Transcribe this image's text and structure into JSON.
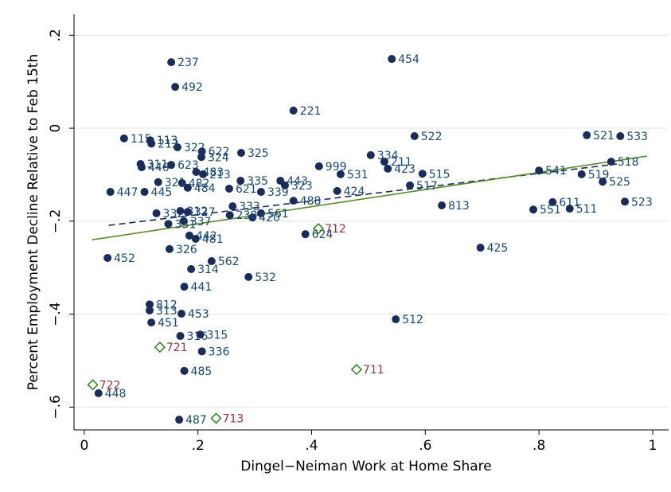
{
  "chart_data": {
    "type": "scatter",
    "x_label": "Dingel−Neiman Work at Home Share",
    "y_label": "Percent Employment Decline Relative to Feb 15th",
    "xlim": [
      -0.018,
      1.028
    ],
    "ylim": [
      -0.649,
      0.245
    ],
    "xticks": [
      0,
      {
        "value": 0.2,
        "label": ".2"
      },
      {
        "value": 0.4,
        "label": ".4"
      },
      {
        "value": 0.6,
        "label": ".6"
      },
      {
        "value": 0.8,
        "label": ".8"
      },
      1
    ],
    "yticks": [
      {
        "value": 0.2,
        "label": ".2"
      },
      0,
      {
        "value": -0.2,
        "label": "−.2"
      },
      {
        "value": -0.4,
        "label": "−.4"
      },
      {
        "value": -0.6,
        "label": "−.6"
      }
    ],
    "grid": true,
    "series": [
      {
        "marker": "circle",
        "color": "#1a2d5a",
        "label_color": "#1a476f",
        "labels": [
          "237",
          "492",
          "454",
          "221",
          "522",
          "521",
          "533",
          "518",
          "541",
          "519",
          "525",
          "523",
          "611",
          "551",
          "511",
          "813",
          "425",
          "512",
          "334",
          "211",
          "423",
          "515",
          "517",
          "531",
          "999",
          "424",
          "443",
          "323",
          "488",
          "339",
          "335",
          "325",
          "621",
          "333",
          "561",
          "420",
          "238",
          "624",
          "448",
          "487",
          "485",
          "336",
          "316",
          "315",
          "453",
          "451",
          "313",
          "812",
          "441",
          "532",
          "314",
          "562",
          "326",
          "452",
          "442",
          "481",
          "337",
          "331",
          "332",
          "312",
          "327",
          "484",
          "482",
          "321",
          "447",
          "445",
          "446",
          "311",
          "623",
          "483",
          "213",
          "622",
          "324",
          "322",
          "115",
          "113",
          "212"
        ],
        "x": [
          0.153,
          0.16,
          0.541,
          0.368,
          0.581,
          0.884,
          0.943,
          0.927,
          0.8,
          0.875,
          0.912,
          0.951,
          0.824,
          0.79,
          0.854,
          0.629,
          0.697,
          0.548,
          0.504,
          0.528,
          0.534,
          0.595,
          0.573,
          0.451,
          0.413,
          0.445,
          0.345,
          0.353,
          0.368,
          0.311,
          0.275,
          0.276,
          0.255,
          0.261,
          0.311,
          0.296,
          0.256,
          0.389,
          0.025,
          0.167,
          0.176,
          0.207,
          0.169,
          0.204,
          0.171,
          0.118,
          0.115,
          0.115,
          0.176,
          0.289,
          0.188,
          0.224,
          0.15,
          0.041,
          0.185,
          0.196,
          0.175,
          0.148,
          0.127,
          0.169,
          0.182,
          0.182,
          0.172,
          0.13,
          0.046,
          0.106,
          0.101,
          0.099,
          0.153,
          0.197,
          0.209,
          0.207,
          0.206,
          0.164,
          0.07,
          0.116,
          0.118
        ],
        "values": [
          0.142,
          0.089,
          0.149,
          0.038,
          -0.017,
          -0.015,
          -0.017,
          -0.072,
          -0.091,
          -0.099,
          -0.115,
          -0.158,
          -0.159,
          -0.175,
          -0.173,
          -0.166,
          -0.257,
          -0.411,
          -0.058,
          -0.072,
          -0.087,
          -0.098,
          -0.123,
          -0.099,
          -0.082,
          -0.135,
          -0.113,
          -0.123,
          -0.156,
          -0.137,
          -0.113,
          -0.053,
          -0.13,
          -0.168,
          -0.183,
          -0.192,
          -0.187,
          -0.228,
          -0.57,
          -0.627,
          -0.522,
          -0.48,
          -0.447,
          -0.444,
          -0.399,
          -0.418,
          -0.392,
          -0.379,
          -0.341,
          -0.32,
          -0.303,
          -0.286,
          -0.26,
          -0.279,
          -0.231,
          -0.238,
          -0.2,
          -0.206,
          -0.183,
          -0.178,
          -0.18,
          -0.128,
          -0.118,
          -0.116,
          -0.137,
          -0.137,
          -0.084,
          -0.077,
          -0.079,
          -0.094,
          -0.099,
          -0.05,
          -0.062,
          -0.041,
          -0.022,
          -0.026,
          -0.033
        ]
      },
      {
        "marker": "diamond",
        "color": "#2e7d1e",
        "label_color": "#90353b",
        "labels": [
          "712",
          "711",
          "721",
          "722",
          "713"
        ],
        "x": [
          0.412,
          0.479,
          0.133,
          0.015,
          0.232
        ],
        "values": [
          -0.216,
          -0.519,
          -0.471,
          -0.552,
          -0.624
        ]
      }
    ],
    "fit_lines": [
      {
        "color": "#1a2d5a",
        "dash": true,
        "x": [
          0.043,
          0.937
        ],
        "values": [
          -0.209,
          -0.077
        ]
      },
      {
        "color": "#5a8a2a",
        "dash": false,
        "x": [
          0.014,
          0.99
        ],
        "values": [
          -0.24,
          -0.06
        ]
      }
    ]
  }
}
